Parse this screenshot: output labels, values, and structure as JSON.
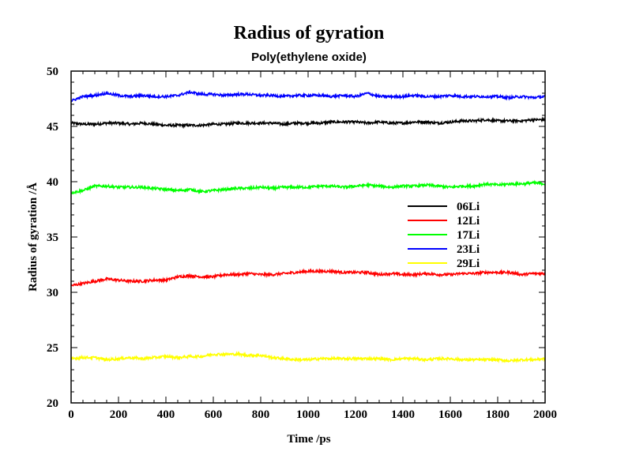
{
  "chart_data": {
    "type": "line",
    "title": "Radius of gyration",
    "subtitle": "Poly(ethylene oxide)",
    "xlabel": "Time /ps",
    "ylabel": "Radius of gyration /Å",
    "xlim": [
      0,
      2000
    ],
    "ylim": [
      20,
      50
    ],
    "xticks": [
      0,
      200,
      400,
      600,
      800,
      1000,
      1200,
      1400,
      1600,
      1800,
      2000
    ],
    "yticks": [
      20,
      25,
      30,
      35,
      40,
      45,
      50
    ],
    "grid": false,
    "legend_position": "right-middle",
    "x": [
      0,
      50,
      100,
      150,
      200,
      250,
      300,
      350,
      400,
      450,
      500,
      550,
      600,
      650,
      700,
      750,
      800,
      850,
      900,
      950,
      1000,
      1050,
      1100,
      1150,
      1200,
      1250,
      1300,
      1350,
      1400,
      1450,
      1500,
      1550,
      1600,
      1650,
      1700,
      1750,
      1800,
      1850,
      1900,
      1950,
      2000
    ],
    "series": [
      {
        "name": "06Li",
        "color": "#000000",
        "values": [
          45.3,
          45.2,
          45.2,
          45.3,
          45.3,
          45.2,
          45.3,
          45.2,
          45.1,
          45.1,
          45.1,
          45.1,
          45.2,
          45.2,
          45.3,
          45.3,
          45.3,
          45.3,
          45.2,
          45.3,
          45.3,
          45.3,
          45.4,
          45.4,
          45.4,
          45.3,
          45.4,
          45.3,
          45.3,
          45.4,
          45.4,
          45.3,
          45.4,
          45.5,
          45.5,
          45.6,
          45.5,
          45.5,
          45.5,
          45.6,
          45.6
        ]
      },
      {
        "name": "12Li",
        "color": "#ff0000",
        "values": [
          30.6,
          30.8,
          31.0,
          31.2,
          31.1,
          31.0,
          31.0,
          31.1,
          31.1,
          31.4,
          31.5,
          31.4,
          31.4,
          31.6,
          31.6,
          31.7,
          31.6,
          31.6,
          31.7,
          31.8,
          31.9,
          31.9,
          31.9,
          31.8,
          31.8,
          31.8,
          31.6,
          31.7,
          31.6,
          31.6,
          31.7,
          31.6,
          31.6,
          31.7,
          31.7,
          31.8,
          31.8,
          31.8,
          31.6,
          31.7,
          31.7
        ]
      },
      {
        "name": "17Li",
        "color": "#00ff00",
        "values": [
          39.0,
          39.2,
          39.6,
          39.6,
          39.5,
          39.5,
          39.5,
          39.4,
          39.3,
          39.2,
          39.3,
          39.1,
          39.2,
          39.3,
          39.4,
          39.4,
          39.5,
          39.4,
          39.5,
          39.5,
          39.5,
          39.6,
          39.6,
          39.5,
          39.6,
          39.7,
          39.6,
          39.5,
          39.6,
          39.6,
          39.7,
          39.6,
          39.5,
          39.6,
          39.6,
          39.8,
          39.7,
          39.8,
          39.8,
          39.9,
          39.8
        ]
      },
      {
        "name": "23Li",
        "color": "#0000ff",
        "values": [
          47.3,
          47.7,
          47.8,
          48.0,
          47.8,
          47.7,
          47.8,
          47.7,
          47.7,
          47.8,
          48.1,
          47.9,
          47.9,
          47.8,
          47.9,
          47.9,
          47.8,
          47.8,
          47.7,
          47.8,
          47.8,
          47.8,
          47.7,
          47.8,
          47.7,
          48.0,
          47.7,
          47.7,
          47.7,
          47.8,
          47.7,
          47.7,
          47.8,
          47.7,
          47.7,
          47.7,
          47.7,
          47.6,
          47.7,
          47.6,
          47.7
        ]
      },
      {
        "name": "29Li",
        "color": "#ffff00",
        "values": [
          24.0,
          24.1,
          24.1,
          23.9,
          24.0,
          24.1,
          24.0,
          24.1,
          24.2,
          24.1,
          24.2,
          24.2,
          24.4,
          24.4,
          24.4,
          24.3,
          24.3,
          24.1,
          24.0,
          23.9,
          23.9,
          24.0,
          24.0,
          24.0,
          24.0,
          24.0,
          24.0,
          23.9,
          24.0,
          24.0,
          23.9,
          24.0,
          24.0,
          23.9,
          23.9,
          23.9,
          23.9,
          23.8,
          23.9,
          23.9,
          24.0
        ]
      }
    ]
  }
}
